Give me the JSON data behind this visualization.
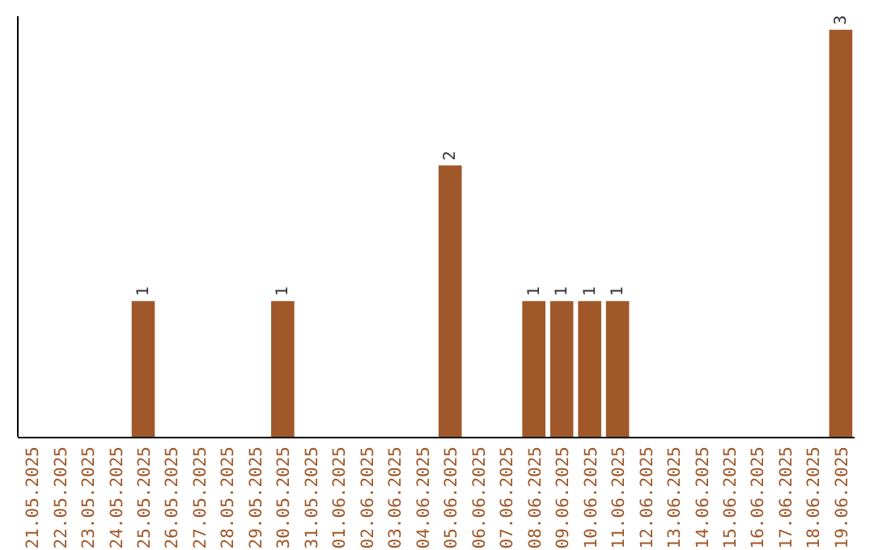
{
  "chart_data": {
    "type": "bar",
    "categories": [
      "21.05.2025",
      "22.05.2025",
      "23.05.2025",
      "24.05.2025",
      "25.05.2025",
      "26.05.2025",
      "27.05.2025",
      "28.05.2025",
      "29.05.2025",
      "30.05.2025",
      "31.05.2025",
      "01.06.2025",
      "02.06.2025",
      "03.06.2025",
      "04.06.2025",
      "05.06.2025",
      "06.06.2025",
      "07.06.2025",
      "08.06.2025",
      "09.06.2025",
      "10.06.2025",
      "11.06.2025",
      "12.06.2025",
      "13.06.2025",
      "14.06.2025",
      "15.06.2025",
      "16.06.2025",
      "17.06.2025",
      "18.06.2025",
      "19.06.2025"
    ],
    "values": [
      0,
      0,
      0,
      0,
      1,
      0,
      0,
      0,
      0,
      1,
      0,
      0,
      0,
      0,
      0,
      2,
      0,
      0,
      1,
      1,
      1,
      1,
      0,
      0,
      0,
      0,
      0,
      0,
      0,
      3
    ],
    "value_labels": [
      null,
      null,
      null,
      null,
      "1",
      null,
      null,
      null,
      null,
      "1",
      null,
      null,
      null,
      null,
      null,
      "2",
      null,
      null,
      "1",
      "1",
      "1",
      "1",
      null,
      null,
      null,
      null,
      null,
      null,
      null,
      "3"
    ],
    "color": "#a0582a",
    "ylim": [
      0,
      3.1
    ],
    "tick_labels": "x"
  }
}
